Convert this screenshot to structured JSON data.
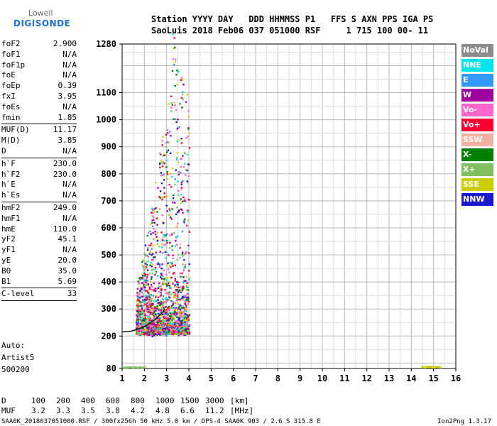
{
  "logo": {
    "top": "Lowell",
    "bottom": "DIGISONDE"
  },
  "header": {
    "line1": "Station YYYY DAY   DDD HHMMSS P1   FFS S AXN PPS IGA PS",
    "line2": "SaoLuis 2018 Feb06 037 051000 RSF     1 715 100 00- 11"
  },
  "params": [
    {
      "k": "foF2",
      "v": "2.900"
    },
    {
      "k": "foF1",
      "v": "N/A"
    },
    {
      "k": "foF1p",
      "v": "N/A"
    },
    {
      "k": "foE",
      "v": "N/A"
    },
    {
      "k": "foEp",
      "v": "0.39"
    },
    {
      "k": "fxI",
      "v": "3.95"
    },
    {
      "k": "foEs",
      "v": "N/A"
    },
    {
      "k": "fmin",
      "v": "1.85"
    },
    {
      "k": "MUF(D)",
      "v": "11.17"
    },
    {
      "k": "M(D)",
      "v": "3.85"
    },
    {
      "k": "D",
      "v": "N/A"
    },
    {
      "k": "h`F",
      "v": "230.0"
    },
    {
      "k": "h`F2",
      "v": "230.0"
    },
    {
      "k": "h`E",
      "v": "N/A"
    },
    {
      "k": "h`Es",
      "v": "N/A"
    },
    {
      "k": "hmF2",
      "v": "249.0"
    },
    {
      "k": "hmF1",
      "v": "N/A"
    },
    {
      "k": "hmE",
      "v": "110.0"
    },
    {
      "k": "yF2",
      "v": "45.1"
    },
    {
      "k": "yF1",
      "v": "N/A"
    },
    {
      "k": "yE",
      "v": "20.0"
    },
    {
      "k": "B0",
      "v": "35.0"
    },
    {
      "k": "B1",
      "v": "5.69"
    },
    {
      "k": "C-level",
      "v": "33"
    }
  ],
  "auto": [
    "Auto:",
    "Artist5",
    "500200"
  ],
  "legend": [
    {
      "label": "NoVal",
      "color": "#8c8c8c"
    },
    {
      "label": "NNE",
      "color": "#00e5ee"
    },
    {
      "label": "E",
      "color": "#3399ff"
    },
    {
      "label": "W",
      "color": "#a100a1"
    },
    {
      "label": "Vo-",
      "color": "#ff66cc"
    },
    {
      "label": "Vo+",
      "color": "#ff0033"
    },
    {
      "label": "SSW",
      "color": "#f4b0a0"
    },
    {
      "label": "X-",
      "color": "#008000"
    },
    {
      "label": "X+",
      "color": "#7fbf5f"
    },
    {
      "label": "SSE",
      "color": "#cccc00"
    },
    {
      "label": "NNW",
      "color": "#1a1acc"
    }
  ],
  "footer": {
    "d_label": "D",
    "d_values": [
      "100",
      "200",
      "400",
      "600",
      "800",
      "1000",
      "1500",
      "3000",
      "[km]"
    ],
    "muf_label": "MUF",
    "muf_values": [
      "3.2",
      "3.3",
      "3.5",
      "3.8",
      "4.2",
      "4.8",
      "6.6",
      "11.2",
      "[MHz]"
    ],
    "bottom_left": "SAA0K_2018037051000.RSF / 300fx256h 50 kHz 5.0 km / DPS-4 SAA0K 903 / 2.6 S 315.8 E",
    "bottom_right": "Ion2Png 1.3.17"
  },
  "chart_data": {
    "type": "scatter",
    "xlim": [
      1,
      16
    ],
    "ylim": [
      80,
      1280
    ],
    "x_ticks": [
      1,
      2,
      3,
      4,
      5,
      6,
      7,
      8,
      9,
      10,
      11,
      12,
      13,
      14,
      15,
      16
    ],
    "y_ticks": [
      80,
      200,
      300,
      400,
      500,
      600,
      700,
      800,
      900,
      1000,
      1100,
      1280
    ],
    "grid": true,
    "series": [
      {
        "name": "X+",
        "color": "#7fbf5f",
        "x": [
          1.1,
          1.2,
          1.3,
          1.4,
          1.5,
          1.6,
          1.7,
          1.8,
          1.9,
          2.0
        ],
        "y": [
          83,
          83,
          84,
          84,
          83,
          84,
          83,
          84,
          83,
          84
        ]
      },
      {
        "name": "SSE",
        "color": "#cccc00",
        "x": [
          14.6,
          14.7,
          14.8,
          14.9,
          15.0,
          15.1,
          15.2,
          14.5,
          15.3
        ],
        "y": [
          84,
          85,
          86,
          85,
          84,
          85,
          86,
          85,
          84
        ]
      }
    ],
    "trace": {
      "color": "#000000",
      "x": [
        1.0,
        1.4,
        1.7,
        2.0,
        2.3,
        2.6,
        2.85,
        2.9
      ],
      "y": [
        215,
        218,
        225,
        235,
        250,
        270,
        290,
        300
      ]
    }
  }
}
